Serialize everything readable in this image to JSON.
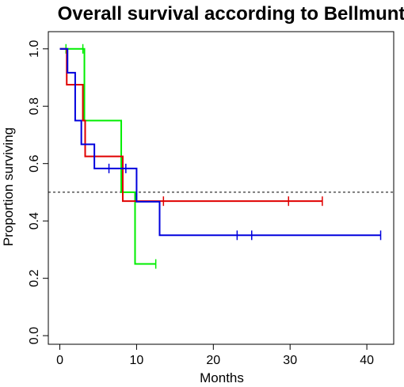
{
  "chart_data": {
    "type": "line",
    "subtype": "kaplan-meier",
    "title": "Overall survival according to Bellmunt",
    "xlabel": "Months",
    "ylabel": "Proportion surviving",
    "xlim": [
      -1.5,
      43.5
    ],
    "ylim": [
      -0.03,
      1.06
    ],
    "xticks": [
      0,
      10,
      20,
      30,
      40
    ],
    "yticks": [
      0.0,
      0.2,
      0.4,
      0.6,
      0.8,
      1.0
    ],
    "xtick_labels": [
      "0",
      "10",
      "20",
      "30",
      "40"
    ],
    "ytick_labels": [
      "0.0",
      "0.2",
      "0.4",
      "0.6",
      "0.8",
      "1.0"
    ],
    "grid": false,
    "legend": null,
    "reference_line": {
      "y": 0.5,
      "style": "dashed",
      "color": "#000000"
    },
    "series": [
      {
        "color": "#00ee00",
        "steps": [
          [
            0,
            1.0
          ],
          [
            3.2,
            0.75
          ],
          [
            8.0,
            0.5
          ],
          [
            9.8,
            0.25
          ],
          [
            12.5,
            0.25
          ]
        ],
        "censored": [
          [
            0.8,
            1.0
          ],
          [
            3.0,
            1.0
          ],
          [
            12.5,
            0.25
          ]
        ]
      },
      {
        "color": "#e00000",
        "steps": [
          [
            0,
            1.0
          ],
          [
            0.9,
            0.875
          ],
          [
            3.0,
            0.75
          ],
          [
            3.3,
            0.625
          ],
          [
            8.2,
            0.469
          ],
          [
            34.2,
            0.469
          ]
        ],
        "censored": [
          [
            13.5,
            0.469
          ],
          [
            29.8,
            0.469
          ],
          [
            34.2,
            0.469
          ]
        ]
      },
      {
        "color": "#0000dd",
        "steps": [
          [
            0,
            1.0
          ],
          [
            1.0,
            0.917
          ],
          [
            2.0,
            0.75
          ],
          [
            2.8,
            0.667
          ],
          [
            4.5,
            0.583
          ],
          [
            10.0,
            0.467
          ],
          [
            13.0,
            0.35
          ],
          [
            41.8,
            0.35
          ]
        ],
        "censored": [
          [
            6.4,
            0.583
          ],
          [
            8.6,
            0.583
          ],
          [
            23.1,
            0.35
          ],
          [
            25.0,
            0.35
          ],
          [
            41.8,
            0.35
          ]
        ]
      }
    ]
  }
}
